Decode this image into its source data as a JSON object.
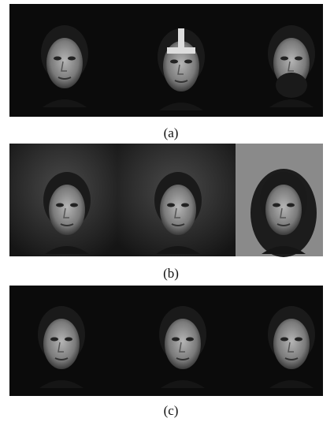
{
  "panels": [
    {
      "caption": "(a)"
    },
    {
      "caption": "(b)"
    },
    {
      "caption": "(c)"
    }
  ]
}
